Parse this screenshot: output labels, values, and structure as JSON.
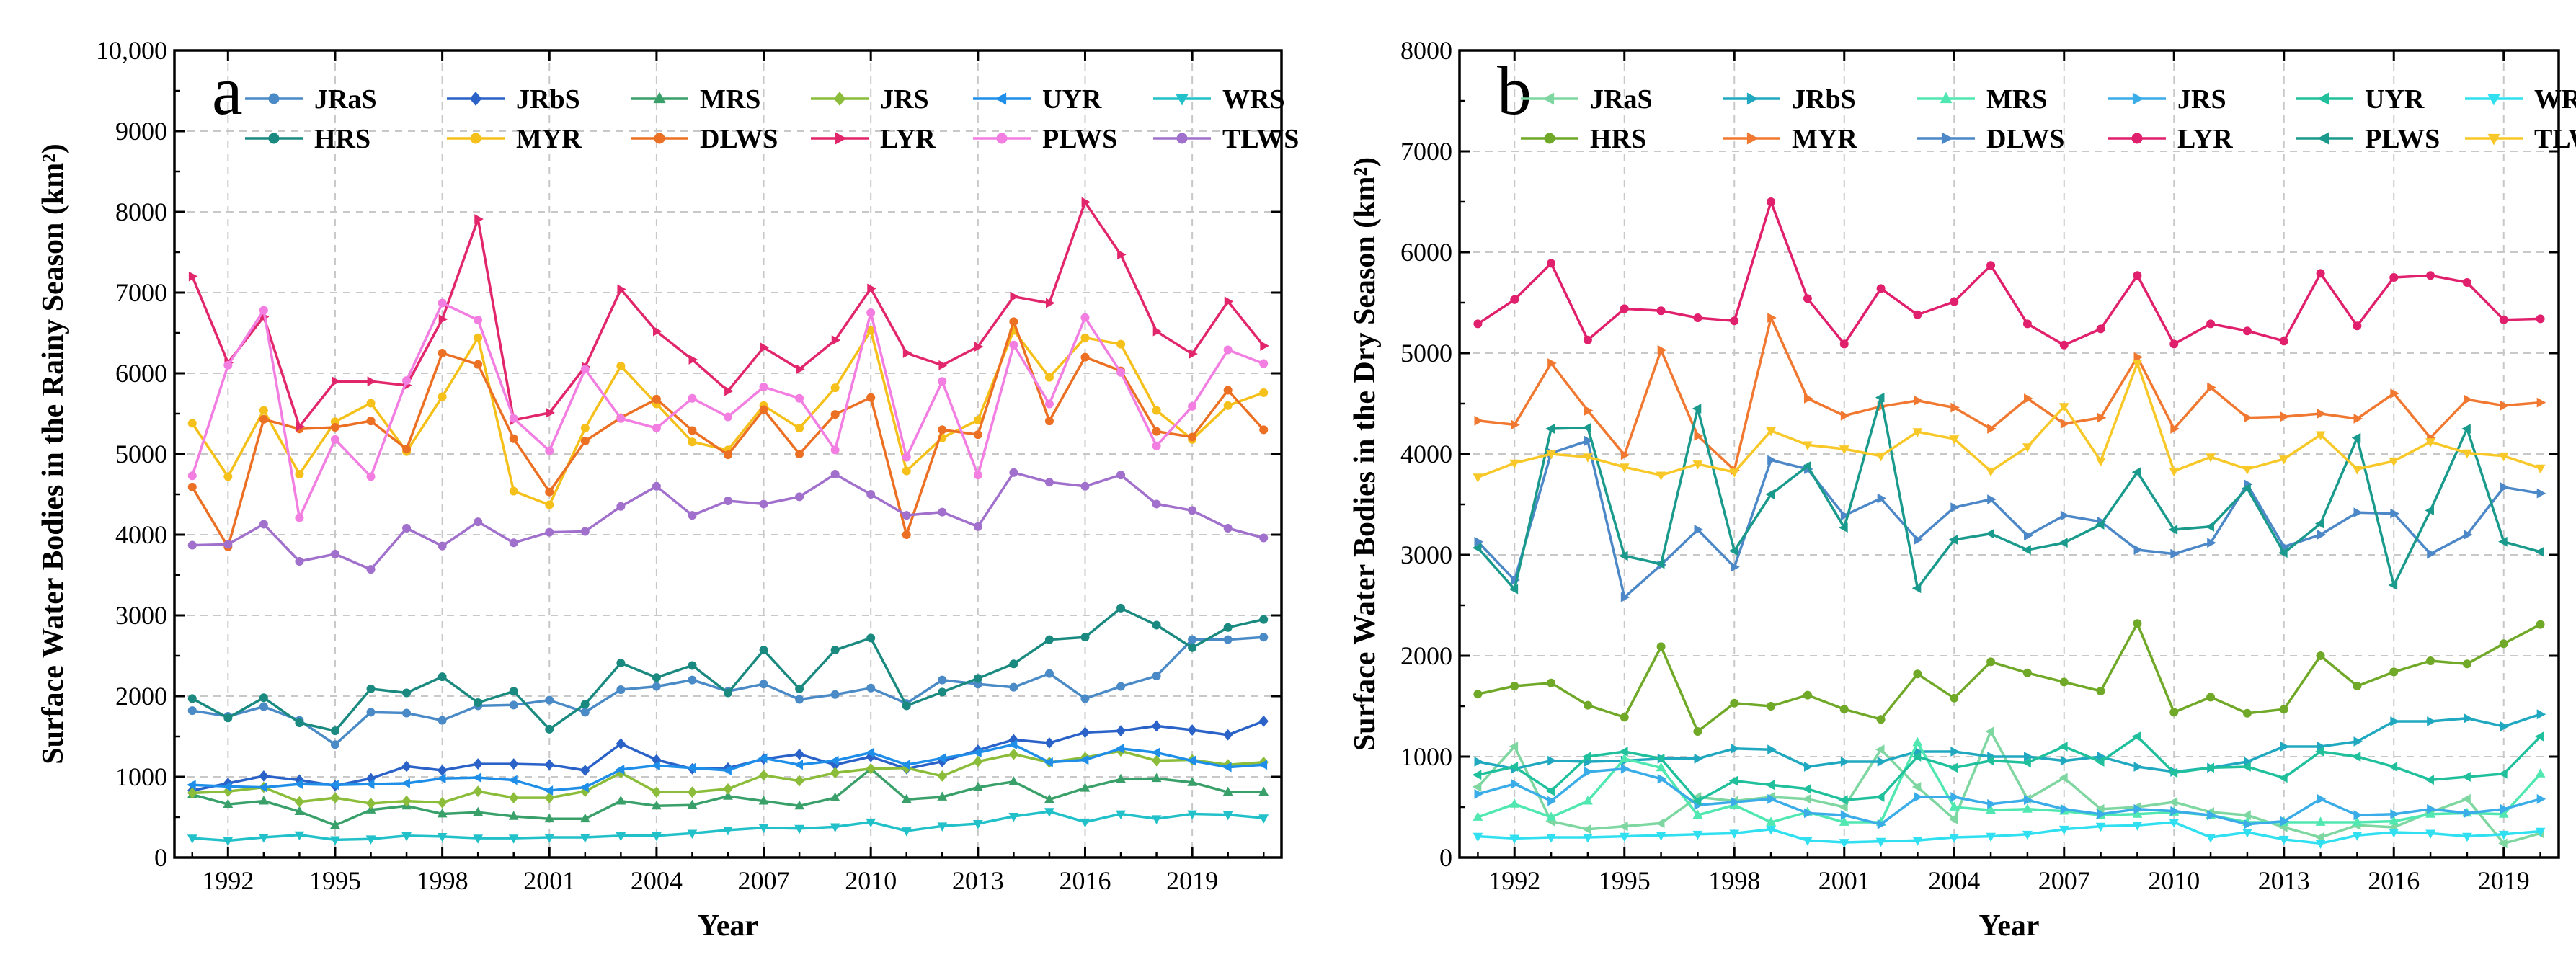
{
  "chart_data": [
    {
      "type": "line",
      "panel_letter": "a",
      "xlabel": "Year",
      "ylabel": "Surface Water Bodies in the Rainy Season (km²)",
      "ylim": [
        0,
        10000
      ],
      "xlim": [
        1990.5,
        2021.5
      ],
      "y_ticks": [
        0,
        1000,
        2000,
        3000,
        4000,
        5000,
        6000,
        7000,
        8000,
        9000,
        10000
      ],
      "y_tick_labels": [
        "0",
        "1000",
        "2000",
        "3000",
        "4000",
        "5000",
        "6000",
        "7000",
        "8000",
        "9000",
        "10,000"
      ],
      "x_ticks": [
        1992,
        1995,
        1998,
        2001,
        2004,
        2007,
        2010,
        2013,
        2016,
        2019
      ],
      "x_tick_labels": [
        "1992",
        "1995",
        "1998",
        "2001",
        "2004",
        "2007",
        "2010",
        "2013",
        "2016",
        "2019"
      ],
      "grid": true,
      "legend_position": "top",
      "x": [
        1991,
        1992,
        1993,
        1994,
        1995,
        1996,
        1997,
        1998,
        1999,
        2000,
        2001,
        2002,
        2003,
        2004,
        2005,
        2006,
        2007,
        2008,
        2009,
        2010,
        2011,
        2012,
        2013,
        2014,
        2015,
        2016,
        2017,
        2018,
        2019,
        2020,
        2021
      ],
      "series": [
        {
          "name": "JRaS",
          "color": "#4a8ac6",
          "marker": "circle",
          "values": [
            1820,
            1750,
            1870,
            1700,
            1400,
            1800,
            1790,
            1700,
            1880,
            1890,
            1950,
            1800,
            2080,
            2120,
            2200,
            2060,
            2150,
            1960,
            2020,
            2100,
            1910,
            2200,
            2150,
            2110,
            2280,
            1970,
            2120,
            2250,
            2700,
            2700,
            2730
          ]
        },
        {
          "name": "JRbS",
          "color": "#2a62c8",
          "marker": "diamond",
          "values": [
            830,
            920,
            1010,
            960,
            890,
            980,
            1130,
            1080,
            1160,
            1160,
            1150,
            1080,
            1410,
            1210,
            1100,
            1110,
            1220,
            1280,
            1150,
            1250,
            1100,
            1190,
            1330,
            1460,
            1420,
            1550,
            1570,
            1630,
            1580,
            1520,
            1690
          ]
        },
        {
          "name": "MRS",
          "color": "#3aa06a",
          "marker": "triangle",
          "values": [
            780,
            660,
            700,
            570,
            400,
            590,
            640,
            540,
            560,
            510,
            480,
            480,
            700,
            640,
            650,
            760,
            700,
            640,
            740,
            1100,
            720,
            750,
            870,
            940,
            720,
            860,
            970,
            980,
            930,
            810,
            810
          ]
        },
        {
          "name": "JRS",
          "color": "#8bbd3a",
          "marker": "diamond",
          "values": [
            800,
            820,
            870,
            690,
            740,
            670,
            700,
            680,
            820,
            740,
            740,
            820,
            1050,
            810,
            810,
            850,
            1020,
            950,
            1050,
            1100,
            1110,
            1010,
            1190,
            1280,
            1180,
            1240,
            1320,
            1200,
            1210,
            1150,
            1180
          ]
        },
        {
          "name": "UYR",
          "color": "#1e8ee8",
          "marker": "triangle-left",
          "values": [
            900,
            880,
            870,
            910,
            900,
            910,
            920,
            980,
            990,
            960,
            830,
            870,
            1090,
            1140,
            1110,
            1080,
            1230,
            1150,
            1200,
            1300,
            1150,
            1230,
            1300,
            1400,
            1180,
            1210,
            1350,
            1300,
            1200,
            1120,
            1150
          ]
        },
        {
          "name": "WRS",
          "color": "#22c0c8",
          "marker": "triangle-down",
          "values": [
            240,
            210,
            250,
            280,
            220,
            230,
            270,
            260,
            240,
            240,
            250,
            250,
            270,
            270,
            300,
            340,
            370,
            360,
            380,
            440,
            330,
            390,
            420,
            510,
            570,
            440,
            540,
            480,
            540,
            530,
            490
          ]
        },
        {
          "name": "HRS",
          "color": "#1a8a80",
          "marker": "circle",
          "values": [
            1970,
            1730,
            1980,
            1670,
            1570,
            2090,
            2040,
            2240,
            1920,
            2060,
            1590,
            1900,
            2410,
            2230,
            2380,
            2040,
            2570,
            2090,
            2570,
            2720,
            1880,
            2050,
            2220,
            2400,
            2700,
            2730,
            3090,
            2880,
            2600,
            2850,
            2950
          ]
        },
        {
          "name": "MYR",
          "color": "#f5c01a",
          "marker": "circle",
          "values": [
            5380,
            4720,
            5540,
            4750,
            5400,
            5630,
            5030,
            5710,
            6440,
            4540,
            4370,
            5320,
            6090,
            5620,
            5150,
            5050,
            5600,
            5320,
            5820,
            6530,
            4790,
            5200,
            5420,
            6530,
            5950,
            6440,
            6360,
            5540,
            5180,
            5600,
            5760
          ]
        },
        {
          "name": "DLWS",
          "color": "#ec7024",
          "marker": "circle",
          "values": [
            4590,
            3850,
            5430,
            5310,
            5330,
            5410,
            5060,
            6250,
            6110,
            5190,
            4530,
            5160,
            5450,
            5680,
            5290,
            4990,
            5550,
            5000,
            5490,
            5700,
            4000,
            5300,
            5240,
            6640,
            5410,
            6200,
            6030,
            5280,
            5210,
            5790,
            5300
          ]
        },
        {
          "name": "LYR",
          "color": "#e2266c",
          "marker": "triangle-right",
          "values": [
            7200,
            6130,
            6700,
            5340,
            5900,
            5900,
            5850,
            6670,
            7910,
            5420,
            5510,
            6080,
            7040,
            6520,
            6170,
            5780,
            6320,
            6050,
            6410,
            7050,
            6250,
            6100,
            6330,
            6950,
            6870,
            8120,
            7470,
            6520,
            6240,
            6890,
            6340
          ]
        },
        {
          "name": "PLWS",
          "color": "#f27ee2",
          "marker": "circle",
          "values": [
            4730,
            6100,
            6780,
            4210,
            5180,
            4720,
            5910,
            6870,
            6660,
            5440,
            5040,
            6050,
            5440,
            5320,
            5690,
            5460,
            5830,
            5690,
            5050,
            6750,
            4960,
            5900,
            4740,
            6350,
            5620,
            6690,
            6010,
            5100,
            5590,
            6290,
            6120
          ]
        },
        {
          "name": "TLWS",
          "color": "#a070cc",
          "marker": "circle",
          "values": [
            3870,
            3880,
            4130,
            3670,
            3760,
            3570,
            4080,
            3860,
            4160,
            3900,
            4030,
            4040,
            4350,
            4600,
            4240,
            4420,
            4380,
            4470,
            4750,
            4500,
            4240,
            4280,
            4100,
            4770,
            4650,
            4600,
            4740,
            4380,
            4300,
            4080,
            3960
          ]
        }
      ]
    },
    {
      "type": "line",
      "panel_letter": "b",
      "xlabel": "Year",
      "ylabel": "Surface Water Bodies in the Dry Season (km²)",
      "ylim": [
        0,
        8000
      ],
      "xlim": [
        1990.5,
        2020.5
      ],
      "y_ticks": [
        0,
        1000,
        2000,
        3000,
        4000,
        5000,
        6000,
        7000,
        8000
      ],
      "y_tick_labels": [
        "0",
        "1000",
        "2000",
        "3000",
        "4000",
        "5000",
        "6000",
        "7000",
        "8000"
      ],
      "x_ticks": [
        1992,
        1995,
        1998,
        2001,
        2004,
        2007,
        2010,
        2013,
        2016,
        2019
      ],
      "x_tick_labels": [
        "1992",
        "1995",
        "1998",
        "2001",
        "2004",
        "2007",
        "2010",
        "2013",
        "2016",
        "2019"
      ],
      "grid": true,
      "legend_position": "top",
      "x": [
        1991,
        1992,
        1993,
        1994,
        1995,
        1996,
        1997,
        1998,
        1999,
        2000,
        2001,
        2002,
        2003,
        2004,
        2005,
        2006,
        2007,
        2008,
        2009,
        2010,
        2011,
        2012,
        2013,
        2014,
        2015,
        2016,
        2017,
        2018,
        2019,
        2020
      ],
      "series": [
        {
          "name": "JRaS",
          "color": "#7ed6a0",
          "marker": "triangle-left",
          "values": [
            700,
            1100,
            360,
            280,
            310,
            340,
            600,
            560,
            600,
            580,
            500,
            1070,
            700,
            380,
            1250,
            580,
            790,
            480,
            500,
            550,
            450,
            420,
            300,
            200,
            320,
            300,
            450,
            580,
            140,
            240
          ]
        },
        {
          "name": "JRbS",
          "color": "#20a8c0",
          "marker": "triangle-right",
          "values": [
            950,
            880,
            960,
            950,
            960,
            980,
            980,
            1080,
            1070,
            900,
            950,
            950,
            1050,
            1050,
            1000,
            1000,
            960,
            1000,
            900,
            850,
            890,
            950,
            1100,
            1100,
            1150,
            1350,
            1350,
            1380,
            1300,
            1420
          ]
        },
        {
          "name": "MRS",
          "color": "#50e8b0",
          "marker": "triangle",
          "values": [
            400,
            530,
            400,
            560,
            980,
            890,
            420,
            520,
            350,
            450,
            350,
            350,
            1140,
            500,
            470,
            480,
            460,
            420,
            430,
            450,
            420,
            350,
            350,
            350,
            350,
            360,
            430,
            440,
            430,
            830
          ]
        },
        {
          "name": "JRS",
          "color": "#3aace8",
          "marker": "triangle-right",
          "values": [
            630,
            730,
            560,
            850,
            880,
            780,
            520,
            550,
            580,
            440,
            420,
            330,
            600,
            600,
            530,
            570,
            480,
            430,
            480,
            460,
            420,
            330,
            360,
            580,
            420,
            430,
            480,
            440,
            480,
            580
          ]
        },
        {
          "name": "UYR",
          "color": "#20c09c",
          "marker": "triangle-left",
          "values": [
            820,
            900,
            660,
            1000,
            1050,
            980,
            560,
            760,
            720,
            680,
            570,
            600,
            1000,
            890,
            960,
            940,
            1100,
            950,
            1200,
            840,
            890,
            900,
            790,
            1050,
            1000,
            900,
            770,
            800,
            830,
            1200
          ]
        },
        {
          "name": "WRS",
          "color": "#30e0f0",
          "marker": "triangle-down",
          "values": [
            210,
            190,
            200,
            200,
            210,
            220,
            230,
            240,
            280,
            170,
            150,
            160,
            170,
            200,
            210,
            230,
            280,
            310,
            320,
            350,
            200,
            250,
            180,
            140,
            220,
            250,
            240,
            210,
            230,
            260
          ]
        },
        {
          "name": "HRS",
          "color": "#70a828",
          "marker": "circle",
          "values": [
            1620,
            1700,
            1730,
            1510,
            1390,
            2090,
            1250,
            1530,
            1500,
            1610,
            1470,
            1370,
            1820,
            1580,
            1940,
            1830,
            1740,
            1650,
            2320,
            1440,
            1590,
            1430,
            1470,
            2000,
            1700,
            1840,
            1950,
            1920,
            2120,
            2310
          ]
        },
        {
          "name": "MYR",
          "color": "#f07830",
          "marker": "triangle-right",
          "values": [
            4330,
            4290,
            4900,
            4430,
            3990,
            5030,
            4180,
            3840,
            5350,
            4550,
            4380,
            4470,
            4530,
            4460,
            4250,
            4550,
            4300,
            4360,
            4960,
            4250,
            4660,
            4360,
            4370,
            4400,
            4350,
            4600,
            4160,
            4540,
            4480,
            4510
          ]
        },
        {
          "name": "DLWS",
          "color": "#4c88c8",
          "marker": "triangle-right",
          "values": [
            3130,
            2750,
            4010,
            4130,
            2580,
            2900,
            3250,
            2880,
            3940,
            3850,
            3390,
            3560,
            3150,
            3470,
            3550,
            3190,
            3390,
            3330,
            3050,
            3010,
            3120,
            3700,
            3080,
            3200,
            3420,
            3410,
            3010,
            3200,
            3670,
            3610
          ]
        },
        {
          "name": "LYR",
          "color": "#e0206c",
          "marker": "circle",
          "values": [
            5290,
            5530,
            5890,
            5130,
            5440,
            5420,
            5350,
            5320,
            6500,
            5540,
            5090,
            5640,
            5380,
            5510,
            5870,
            5290,
            5080,
            5240,
            5770,
            5090,
            5290,
            5220,
            5120,
            5790,
            5270,
            5750,
            5770,
            5700,
            5330,
            5340
          ]
        },
        {
          "name": "PLWS",
          "color": "#1a9a8c",
          "marker": "triangle-left",
          "values": [
            3070,
            2660,
            4250,
            4260,
            2990,
            2910,
            4450,
            3040,
            3600,
            3880,
            3270,
            4560,
            2670,
            3150,
            3210,
            3050,
            3120,
            3300,
            3820,
            3250,
            3280,
            3660,
            3020,
            3310,
            4160,
            2700,
            3440,
            4250,
            3130,
            3030
          ]
        },
        {
          "name": "TLWS",
          "color": "#f8c828",
          "marker": "triangle-down",
          "values": [
            3770,
            3910,
            4000,
            3970,
            3870,
            3790,
            3900,
            3820,
            4230,
            4090,
            4050,
            3980,
            4220,
            4150,
            3830,
            4070,
            4470,
            3930,
            4900,
            3830,
            3970,
            3850,
            3950,
            4190,
            3850,
            3930,
            4120,
            4010,
            3980,
            3860
          ]
        }
      ]
    }
  ]
}
